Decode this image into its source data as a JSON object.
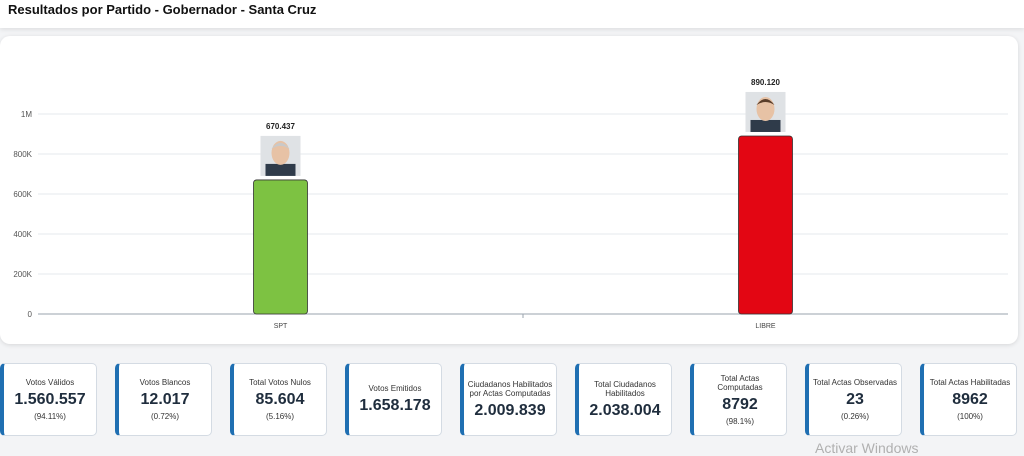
{
  "header": {
    "title": "Resultados por Partido - Gobernador - Santa Cruz"
  },
  "chart_data": {
    "type": "bar",
    "categories": [
      "SPT",
      "LIBRE"
    ],
    "values": [
      670437,
      890120
    ],
    "value_labels": [
      "670.437",
      "890.120"
    ],
    "colors": [
      "#7dc242",
      "#e30613"
    ],
    "y_ticks": [
      {
        "value": 0,
        "label": "0"
      },
      {
        "value": 200000,
        "label": "200K"
      },
      {
        "value": 400000,
        "label": "400K"
      },
      {
        "value": 600000,
        "label": "600K"
      },
      {
        "value": 800000,
        "label": "800K"
      },
      {
        "value": 1000000,
        "label": "1M"
      }
    ],
    "ylim": [
      0,
      1000000
    ],
    "grid": true,
    "legend": "none"
  },
  "stats": [
    {
      "label": "Votos Válidos",
      "value": "1.560.557",
      "sub": "(94.11%)"
    },
    {
      "label": "Votos Blancos",
      "value": "12.017",
      "sub": "(0.72%)"
    },
    {
      "label": "Total Votos Nulos",
      "value": "85.604",
      "sub": "(5.16%)"
    },
    {
      "label": "Votos Emitidos",
      "value": "1.658.178",
      "sub": ""
    },
    {
      "label": "Ciudadanos Habilitados por Actas Computadas",
      "value": "2.009.839",
      "sub": ""
    },
    {
      "label": "Total Ciudadanos Habilitados",
      "value": "2.038.004",
      "sub": ""
    },
    {
      "label": "Total Actas Computadas",
      "value": "8792",
      "sub": "(98.1%)"
    },
    {
      "label": "Total Actas Observadas",
      "value": "23",
      "sub": "(0.26%)"
    },
    {
      "label": "Total Actas Habilitadas",
      "value": "8962",
      "sub": "(100%)"
    }
  ],
  "watermark": "Activar Windows"
}
